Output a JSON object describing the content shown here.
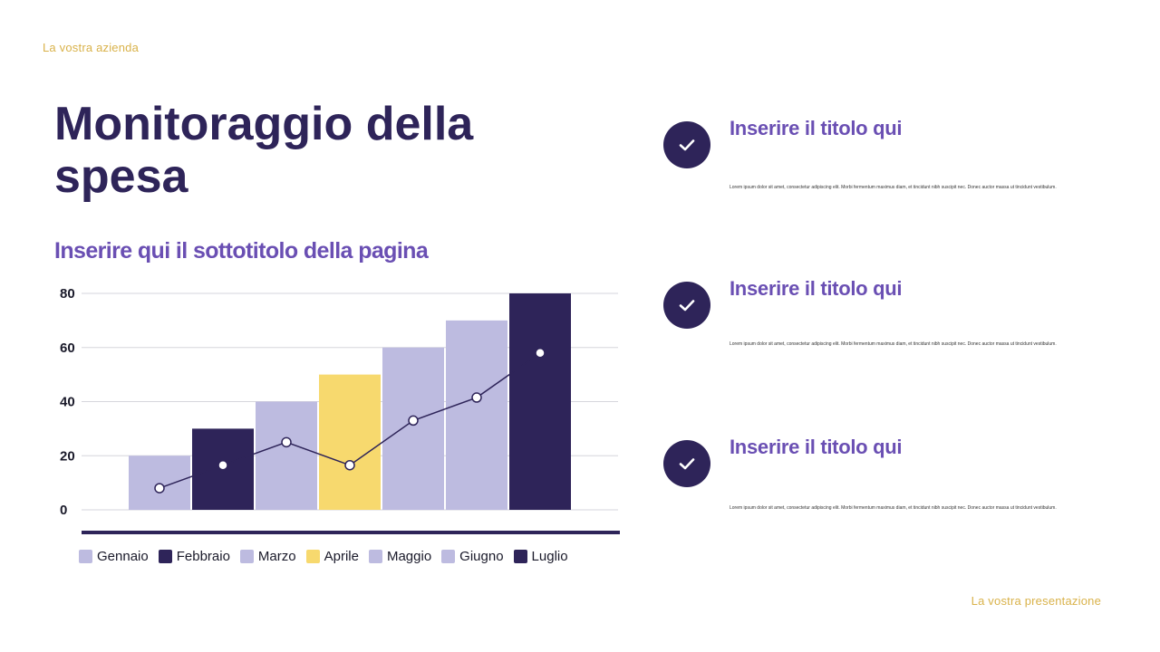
{
  "header": {
    "company": "La vostra azienda"
  },
  "footer": {
    "presentation": "La vostra presentazione"
  },
  "slide": {
    "title": "Monitoraggio della spesa",
    "subtitle": "Inserire qui il sottotitolo della pagina"
  },
  "features": [
    {
      "icon": "check-icon",
      "title": "Inserire il titolo qui",
      "text": "Lorem ipsum dolor sit amet, consectetur adipiscing elit. Morbi fermentum maximus diam, et tincidunt nibh suscipit nec. Donec auctor massa ut tincidunt vestibulum."
    },
    {
      "icon": "check-icon",
      "title": "Inserire il titolo qui",
      "text": "Lorem ipsum dolor sit amet, consectetur adipiscing elit. Morbi fermentum maximus diam, et tincidunt nibh suscipit nec. Donec auctor massa ut tincidunt vestibulum."
    },
    {
      "icon": "check-icon",
      "title": "Inserire il titolo qui",
      "text": "Lorem ipsum dolor sit amet, consectetur adipiscing elit. Morbi fermentum maximus diam, et tincidunt nibh suscipit nec. Donec auctor massa ut tincidunt vestibulum."
    }
  ],
  "colors": {
    "dark": "#2e2459",
    "light": "#bdbbe0",
    "yellow": "#f7d96e",
    "accent": "#6a4fb3",
    "gold": "#d9b24a"
  },
  "chart_data": {
    "type": "bar",
    "categories": [
      "Gennaio",
      "Febbraio",
      "Marzo",
      "Aprile",
      "Maggio",
      "Giugno",
      "Luglio"
    ],
    "values": [
      20,
      30,
      40,
      50,
      60,
      70,
      80
    ],
    "bar_colors": [
      "#bdbbe0",
      "#2e2459",
      "#bdbbe0",
      "#f7d96e",
      "#bdbbe0",
      "#bdbbe0",
      "#2e2459"
    ],
    "line": {
      "type": "line",
      "values": [
        8,
        16.5,
        25,
        16.5,
        33,
        41.5,
        58
      ],
      "color": "#2e2459"
    },
    "y_ticks": [
      0,
      20,
      40,
      60,
      80
    ],
    "ylim": [
      0,
      80
    ],
    "grid": true,
    "legend": "bottom",
    "title": "",
    "xlabel": "",
    "ylabel": ""
  }
}
